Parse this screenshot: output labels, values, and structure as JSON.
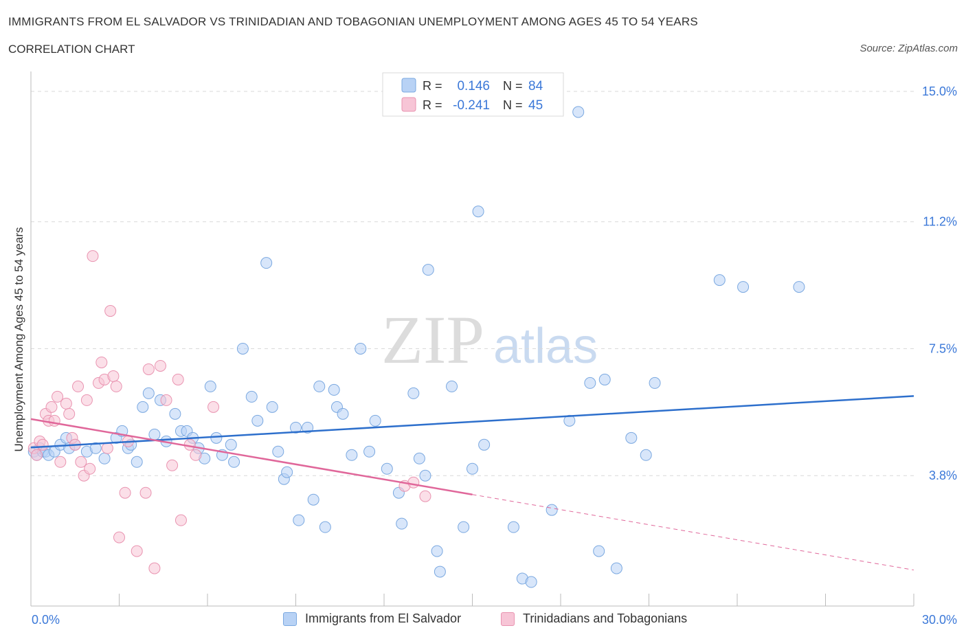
{
  "header": {
    "title": "IMMIGRANTS FROM EL SALVADOR VS TRINIDADIAN AND TOBAGONIAN UNEMPLOYMENT AMONG AGES 45 TO 54 YEARS",
    "subtitle": "CORRELATION CHART",
    "source": "Source: ZipAtlas.com"
  },
  "colors": {
    "blue_fill": "#b8d2f5",
    "blue_stroke": "#7aa8e0",
    "blue_line": "#2d6fcc",
    "pink_fill": "#f7c5d6",
    "pink_stroke": "#e993b0",
    "pink_line": "#e0679a",
    "axis_label": "#3b78d8",
    "grid": "#d9d9d9"
  },
  "legend": {
    "rows": [
      {
        "r_label": "R =",
        "r_value": "0.146",
        "n_label": "N =",
        "n_value": "84"
      },
      {
        "r_label": "R =",
        "r_value": "-0.241",
        "n_label": "N =",
        "n_value": "45"
      }
    ]
  },
  "watermark": {
    "zip": "ZIP",
    "atlas": "atlas"
  },
  "chart_data": {
    "type": "scatter",
    "ylabel": "Unemployment Among Ages 45 to 54 years",
    "x_tick_labels": [
      "0.0%",
      "30.0%"
    ],
    "y_tick_labels": [
      "3.8%",
      "7.5%",
      "11.2%",
      "15.0%"
    ],
    "y_ticks": [
      3.8,
      7.5,
      11.2,
      15.0
    ],
    "xlim": [
      0,
      30
    ],
    "ylim": [
      0,
      15.3
    ],
    "grid": true,
    "series": [
      {
        "name": "Immigrants from El Salvador",
        "color": "#b8d2f5",
        "points": [
          [
            0.1,
            4.5
          ],
          [
            0.2,
            4.4
          ],
          [
            0.3,
            4.6
          ],
          [
            0.4,
            4.5
          ],
          [
            0.5,
            4.5
          ],
          [
            0.6,
            4.4
          ],
          [
            0.8,
            4.5
          ],
          [
            1.0,
            4.7
          ],
          [
            1.2,
            4.9
          ],
          [
            1.3,
            4.6
          ],
          [
            1.5,
            4.7
          ],
          [
            1.9,
            4.5
          ],
          [
            2.2,
            4.6
          ],
          [
            2.5,
            4.3
          ],
          [
            2.9,
            4.9
          ],
          [
            3.1,
            5.1
          ],
          [
            3.3,
            4.6
          ],
          [
            3.4,
            4.7
          ],
          [
            3.6,
            4.2
          ],
          [
            3.8,
            5.8
          ],
          [
            4.0,
            6.2
          ],
          [
            4.2,
            5.0
          ],
          [
            4.4,
            6.0
          ],
          [
            4.6,
            4.8
          ],
          [
            4.9,
            5.6
          ],
          [
            5.1,
            5.1
          ],
          [
            5.3,
            5.1
          ],
          [
            5.5,
            4.9
          ],
          [
            5.7,
            4.6
          ],
          [
            5.9,
            4.3
          ],
          [
            6.1,
            6.4
          ],
          [
            6.3,
            4.9
          ],
          [
            6.5,
            4.4
          ],
          [
            6.8,
            4.7
          ],
          [
            6.9,
            4.2
          ],
          [
            7.2,
            7.5
          ],
          [
            7.5,
            6.1
          ],
          [
            7.7,
            5.4
          ],
          [
            8.0,
            10.0
          ],
          [
            8.2,
            5.8
          ],
          [
            8.4,
            4.5
          ],
          [
            8.6,
            3.7
          ],
          [
            8.7,
            3.9
          ],
          [
            9.0,
            5.2
          ],
          [
            9.1,
            2.5
          ],
          [
            9.4,
            5.2
          ],
          [
            9.6,
            3.1
          ],
          [
            9.8,
            6.4
          ],
          [
            10.0,
            2.3
          ],
          [
            10.3,
            6.3
          ],
          [
            10.4,
            5.8
          ],
          [
            10.6,
            5.6
          ],
          [
            10.9,
            4.4
          ],
          [
            11.2,
            7.5
          ],
          [
            11.5,
            4.5
          ],
          [
            11.7,
            5.4
          ],
          [
            12.1,
            4.0
          ],
          [
            12.5,
            3.3
          ],
          [
            12.6,
            2.4
          ],
          [
            13.0,
            6.2
          ],
          [
            13.2,
            4.3
          ],
          [
            13.4,
            3.8
          ],
          [
            13.5,
            9.8
          ],
          [
            13.8,
            1.6
          ],
          [
            13.9,
            1.0
          ],
          [
            14.3,
            6.4
          ],
          [
            14.7,
            2.3
          ],
          [
            15.0,
            4.0
          ],
          [
            15.2,
            11.5
          ],
          [
            15.4,
            4.7
          ],
          [
            16.4,
            2.3
          ],
          [
            16.7,
            0.8
          ],
          [
            17.0,
            0.7
          ],
          [
            17.7,
            2.8
          ],
          [
            18.3,
            5.4
          ],
          [
            18.6,
            14.4
          ],
          [
            19.0,
            6.5
          ],
          [
            19.3,
            1.6
          ],
          [
            19.5,
            6.6
          ],
          [
            19.9,
            1.1
          ],
          [
            20.4,
            4.9
          ],
          [
            20.9,
            4.4
          ],
          [
            21.2,
            6.5
          ],
          [
            23.4,
            9.5
          ],
          [
            24.2,
            9.3
          ],
          [
            26.1,
            9.3
          ]
        ]
      },
      {
        "name": "Trinidadians and Tobagonians",
        "color": "#f7c5d6",
        "points": [
          [
            0.1,
            4.6
          ],
          [
            0.2,
            4.4
          ],
          [
            0.3,
            4.8
          ],
          [
            0.4,
            4.7
          ],
          [
            0.5,
            5.6
          ],
          [
            0.6,
            5.4
          ],
          [
            0.7,
            5.8
          ],
          [
            0.8,
            5.4
          ],
          [
            0.9,
            6.1
          ],
          [
            1.0,
            4.2
          ],
          [
            1.2,
            5.9
          ],
          [
            1.3,
            5.6
          ],
          [
            1.4,
            4.9
          ],
          [
            1.5,
            4.7
          ],
          [
            1.6,
            6.4
          ],
          [
            1.7,
            4.2
          ],
          [
            1.8,
            3.8
          ],
          [
            1.9,
            6.0
          ],
          [
            2.0,
            4.0
          ],
          [
            2.1,
            10.2
          ],
          [
            2.3,
            6.5
          ],
          [
            2.4,
            7.1
          ],
          [
            2.5,
            6.6
          ],
          [
            2.6,
            4.6
          ],
          [
            2.7,
            8.6
          ],
          [
            2.8,
            6.7
          ],
          [
            2.9,
            6.4
          ],
          [
            3.0,
            2.0
          ],
          [
            3.2,
            3.3
          ],
          [
            3.3,
            4.8
          ],
          [
            3.6,
            1.6
          ],
          [
            3.9,
            3.3
          ],
          [
            4.0,
            6.9
          ],
          [
            4.2,
            1.1
          ],
          [
            4.4,
            7.0
          ],
          [
            4.6,
            6.0
          ],
          [
            4.8,
            4.1
          ],
          [
            5.0,
            6.6
          ],
          [
            5.1,
            2.5
          ],
          [
            5.4,
            4.7
          ],
          [
            5.6,
            4.4
          ],
          [
            6.2,
            5.8
          ],
          [
            12.7,
            3.5
          ],
          [
            13.0,
            3.6
          ],
          [
            13.4,
            3.2
          ]
        ]
      }
    ],
    "trend_lines": [
      {
        "series": "Immigrants from El Salvador",
        "x": [
          0,
          30
        ],
        "y": [
          4.62,
          6.12
        ]
      },
      {
        "series": "Trinidadians and Tobagonians",
        "x": [
          0,
          15.0
        ],
        "y": [
          5.45,
          3.25
        ],
        "dashed_extension": {
          "x": [
            15.0,
            30.0
          ],
          "y": [
            3.25,
            1.05
          ]
        }
      }
    ]
  }
}
